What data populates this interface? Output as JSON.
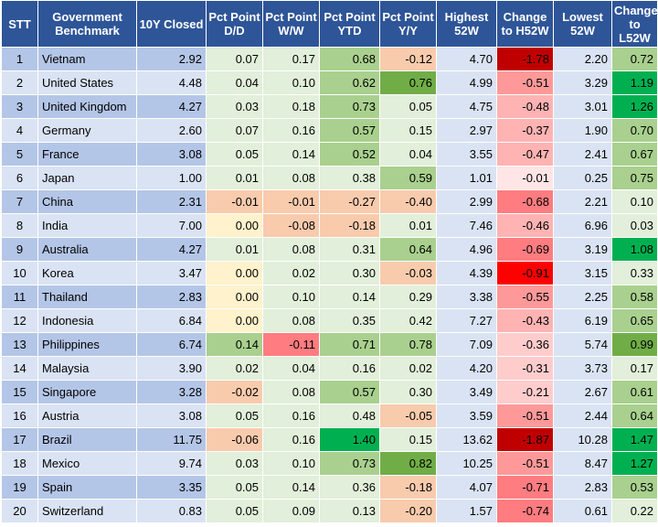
{
  "headers": [
    "STT",
    "Government Benchmark",
    "10Y Closed",
    "Pct Point D/D",
    "Pct Point W/W",
    "Pct Point YTD",
    "Pct Point Y/Y",
    "Highest 52W",
    "Change to H52W",
    "Lowest 52W",
    "Change to L52W"
  ],
  "rows": [
    [
      "1",
      "Vietnam",
      "2.92",
      "0.07",
      "0.17",
      "0.68",
      "-0.12",
      "4.70",
      "-1.78",
      "2.20",
      "0.72"
    ],
    [
      "2",
      "United States",
      "4.48",
      "0.04",
      "0.10",
      "0.62",
      "0.76",
      "4.99",
      "-0.51",
      "3.29",
      "1.19"
    ],
    [
      "3",
      "United Kingdom",
      "4.27",
      "0.03",
      "0.18",
      "0.73",
      "0.05",
      "4.75",
      "-0.48",
      "3.01",
      "1.26"
    ],
    [
      "4",
      "Germany",
      "2.60",
      "0.07",
      "0.16",
      "0.57",
      "0.15",
      "2.97",
      "-0.37",
      "1.90",
      "0.70"
    ],
    [
      "5",
      "France",
      "3.08",
      "0.05",
      "0.14",
      "0.52",
      "0.04",
      "3.55",
      "-0.47",
      "2.41",
      "0.67"
    ],
    [
      "6",
      "Japan",
      "1.00",
      "0.01",
      "0.08",
      "0.38",
      "0.59",
      "1.01",
      "-0.01",
      "0.25",
      "0.75"
    ],
    [
      "7",
      "China",
      "2.31",
      "-0.01",
      "-0.01",
      "-0.27",
      "-0.40",
      "2.99",
      "-0.68",
      "2.21",
      "0.10"
    ],
    [
      "8",
      "India",
      "7.00",
      "0.00",
      "-0.08",
      "-0.18",
      "0.01",
      "7.46",
      "-0.46",
      "6.96",
      "0.03"
    ],
    [
      "9",
      "Australia",
      "4.27",
      "0.01",
      "0.08",
      "0.31",
      "0.64",
      "4.96",
      "-0.69",
      "3.19",
      "1.08"
    ],
    [
      "10",
      "Korea",
      "3.47",
      "0.00",
      "0.02",
      "0.30",
      "-0.03",
      "4.39",
      "-0.91",
      "3.15",
      "0.33"
    ],
    [
      "11",
      "Thailand",
      "2.83",
      "0.00",
      "0.10",
      "0.14",
      "0.29",
      "3.38",
      "-0.55",
      "2.25",
      "0.58"
    ],
    [
      "12",
      "Indonesia",
      "6.84",
      "0.00",
      "0.08",
      "0.35",
      "0.42",
      "7.27",
      "-0.43",
      "6.19",
      "0.65"
    ],
    [
      "13",
      "Philippines",
      "6.74",
      "0.14",
      "-0.11",
      "0.71",
      "0.78",
      "7.09",
      "-0.36",
      "5.74",
      "0.99"
    ],
    [
      "14",
      "Malaysia",
      "3.90",
      "0.02",
      "0.04",
      "0.16",
      "0.02",
      "4.20",
      "-0.31",
      "3.73",
      "0.17"
    ],
    [
      "15",
      "Singapore",
      "3.28",
      "-0.02",
      "0.08",
      "0.57",
      "0.30",
      "3.49",
      "-0.21",
      "2.67",
      "0.61"
    ],
    [
      "16",
      "Austria",
      "3.08",
      "0.05",
      "0.16",
      "0.48",
      "-0.05",
      "3.59",
      "-0.51",
      "2.44",
      "0.64"
    ],
    [
      "17",
      "Brazil",
      "11.75",
      "-0.06",
      "0.16",
      "1.40",
      "0.15",
      "13.62",
      "-1.87",
      "10.28",
      "1.47"
    ],
    [
      "18",
      "Mexico",
      "9.74",
      "0.03",
      "0.10",
      "0.73",
      "0.82",
      "10.25",
      "-0.51",
      "8.47",
      "1.27"
    ],
    [
      "19",
      "Spain",
      "3.35",
      "0.05",
      "0.14",
      "0.36",
      "-0.18",
      "4.07",
      "-0.71",
      "2.83",
      "0.53"
    ],
    [
      "20",
      "Switzerland",
      "0.83",
      "0.05",
      "0.09",
      "0.13",
      "-0.20",
      "1.57",
      "-0.74",
      "0.61",
      "0.22"
    ]
  ],
  "cell_colors": [
    [
      null,
      null,
      null,
      "#e2efda",
      "#e2efda",
      "#a9d08e",
      "#f8cbad",
      "#dae3f3",
      "#c00000",
      "#dae3f3",
      "#a9d08e"
    ],
    [
      null,
      null,
      null,
      "#e2efda",
      "#e2efda",
      "#a9d08e",
      "#70ad47",
      "#dae3f3",
      "#ff9999",
      "#dae3f3",
      "#00b050"
    ],
    [
      null,
      null,
      null,
      "#e2efda",
      "#e2efda",
      "#a9d08e",
      "#e2efda",
      "#dae3f3",
      "#ffb3b3",
      "#dae3f3",
      "#00b050"
    ],
    [
      null,
      null,
      null,
      "#e2efda",
      "#e2efda",
      "#a9d08e",
      "#e2efda",
      "#dae3f3",
      "#ffb3b3",
      "#dae3f3",
      "#a9d08e"
    ],
    [
      null,
      null,
      null,
      "#e2efda",
      "#e2efda",
      "#a9d08e",
      "#e2efda",
      "#dae3f3",
      "#ffb3b3",
      "#dae3f3",
      "#a9d08e"
    ],
    [
      null,
      null,
      null,
      "#e2efda",
      "#e2efda",
      "#e2efda",
      "#a9d08e",
      "#dae3f3",
      "#ffe5e5",
      "#dae3f3",
      "#a9d08e"
    ],
    [
      null,
      null,
      null,
      "#f8cbad",
      "#f8cbad",
      "#f8cbad",
      "#f8cbad",
      "#dae3f3",
      "#ff7c80",
      "#dae3f3",
      "#e2efda"
    ],
    [
      null,
      null,
      null,
      "#fff2cc",
      "#f8cbad",
      "#f8cbad",
      "#e2efda",
      "#dae3f3",
      "#ffb3b3",
      "#dae3f3",
      "#e2efda"
    ],
    [
      null,
      null,
      null,
      "#e2efda",
      "#e2efda",
      "#e2efda",
      "#a9d08e",
      "#dae3f3",
      "#ff7c80",
      "#dae3f3",
      "#00b050"
    ],
    [
      null,
      null,
      null,
      "#fff2cc",
      "#e2efda",
      "#e2efda",
      "#f8cbad",
      "#dae3f3",
      "#ff0000",
      "#dae3f3",
      "#e2efda"
    ],
    [
      null,
      null,
      null,
      "#fff2cc",
      "#e2efda",
      "#e2efda",
      "#e2efda",
      "#dae3f3",
      "#ff9999",
      "#dae3f3",
      "#a9d08e"
    ],
    [
      null,
      null,
      null,
      "#fff2cc",
      "#e2efda",
      "#e2efda",
      "#e2efda",
      "#dae3f3",
      "#ffb3b3",
      "#dae3f3",
      "#a9d08e"
    ],
    [
      null,
      null,
      null,
      "#a9d08e",
      "#ff7c80",
      "#a9d08e",
      "#a9d08e",
      "#dae3f3",
      "#ffcccc",
      "#dae3f3",
      "#70ad47"
    ],
    [
      null,
      null,
      null,
      "#e2efda",
      "#e2efda",
      "#e2efda",
      "#e2efda",
      "#dae3f3",
      "#ffcccc",
      "#dae3f3",
      "#e2efda"
    ],
    [
      null,
      null,
      null,
      "#f8cbad",
      "#e2efda",
      "#a9d08e",
      "#e2efda",
      "#dae3f3",
      "#ffcccc",
      "#dae3f3",
      "#a9d08e"
    ],
    [
      null,
      null,
      null,
      "#e2efda",
      "#e2efda",
      "#e2efda",
      "#f8cbad",
      "#dae3f3",
      "#ff9999",
      "#dae3f3",
      "#a9d08e"
    ],
    [
      null,
      null,
      null,
      "#f8cbad",
      "#e2efda",
      "#00b050",
      "#e2efda",
      "#dae3f3",
      "#c00000",
      "#dae3f3",
      "#00b050"
    ],
    [
      null,
      null,
      null,
      "#e2efda",
      "#e2efda",
      "#a9d08e",
      "#70ad47",
      "#dae3f3",
      "#ff9999",
      "#dae3f3",
      "#00b050"
    ],
    [
      null,
      null,
      null,
      "#e2efda",
      "#e2efda",
      "#e2efda",
      "#f8cbad",
      "#dae3f3",
      "#ff7c80",
      "#dae3f3",
      "#a9d08e"
    ],
    [
      null,
      null,
      null,
      "#e2efda",
      "#e2efda",
      "#e2efda",
      "#f8cbad",
      "#dae3f3",
      "#ff7c80",
      "#dae3f3",
      "#e2efda"
    ]
  ],
  "colors": {
    "header_bg": "#2e5597",
    "header_text": "#ffffff",
    "row_odd": "#b4c6e7",
    "row_even": "#dae3f3"
  }
}
